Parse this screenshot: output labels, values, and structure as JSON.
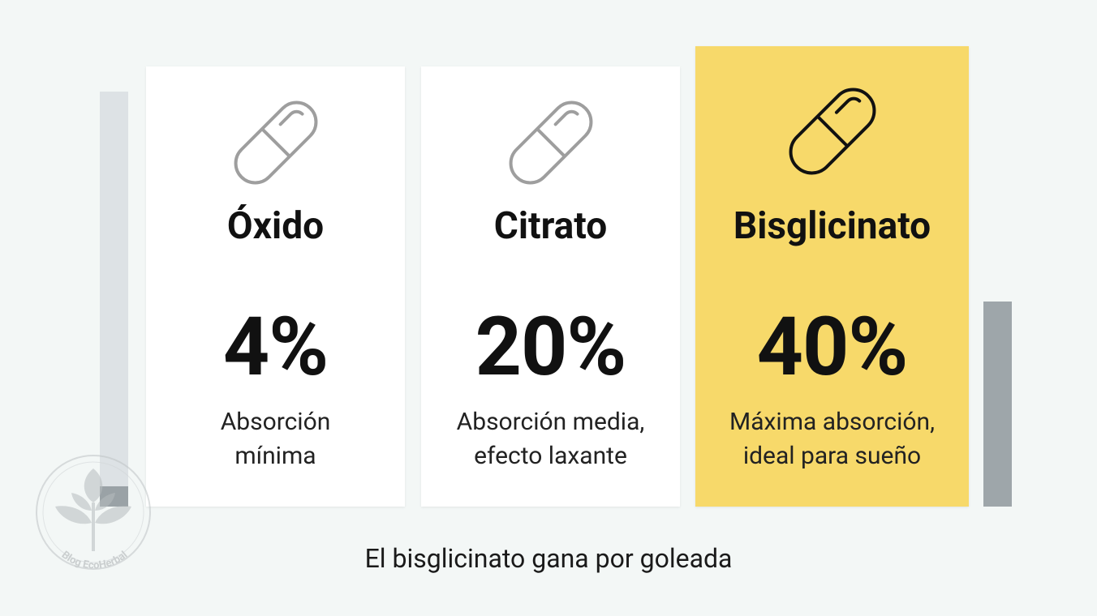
{
  "cards": [
    {
      "title": "Óxido",
      "value": "4%",
      "description": [
        "Absorción",
        "mínima"
      ]
    },
    {
      "title": "Citrato",
      "value": "20%",
      "description": [
        "Absorción media,",
        "efecto laxante"
      ]
    },
    {
      "title": "Bisglicinato",
      "value": "40%",
      "description": [
        "Máxima absorción,",
        "ideal para sueño"
      ]
    }
  ],
  "caption": "El bisglicinato gana por goleada",
  "watermark": "Blog EcoHerbal"
}
